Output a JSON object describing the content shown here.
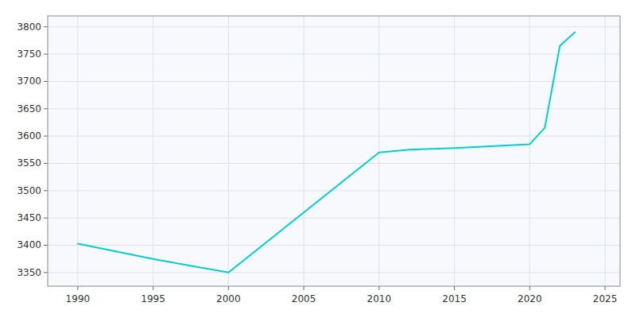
{
  "chart_data": {
    "type": "line",
    "x": [
      1990,
      1995,
      2000,
      2010,
      2012,
      2015,
      2020,
      2021,
      2022,
      2023
    ],
    "values": [
      3403,
      3375,
      3350,
      3570,
      3575,
      3578,
      3585,
      3615,
      3765,
      3790
    ],
    "color": "#00CED1",
    "xlim": [
      1988,
      2026
    ],
    "ylim": [
      3325,
      3820
    ],
    "xticks": [
      1990,
      1995,
      2000,
      2005,
      2010,
      2015,
      2020,
      2025
    ],
    "yticks": [
      3350,
      3400,
      3450,
      3500,
      3550,
      3600,
      3650,
      3700,
      3750,
      3800
    ],
    "grid": true
  }
}
